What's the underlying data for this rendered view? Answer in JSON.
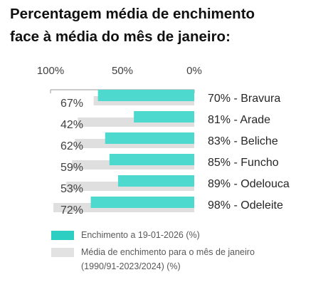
{
  "chart_data": {
    "type": "bar",
    "orientation": "horizontal",
    "title_lines": [
      "Percentagem média de enchimento",
      "face à média do mês de janeiro:"
    ],
    "x_axis": {
      "reversed": true,
      "range": [
        0,
        100
      ],
      "ticks": [
        100,
        50,
        0
      ],
      "tick_labels": [
        "100%",
        "50%",
        "0%"
      ]
    },
    "categories": [
      "70% - Bravura",
      "81% - Arade",
      "83% - Beliche",
      "85% - Funcho",
      "89% - Odelouca",
      "98% - Odeleite"
    ],
    "series": [
      {
        "name": "Enchimento a 19-01-2026 (%)",
        "color": "#4DD9CE",
        "values": [
          67,
          42,
          62,
          59,
          53,
          72
        ],
        "labels": [
          "67%",
          "42%",
          "62%",
          "59%",
          "53%",
          "72%"
        ]
      },
      {
        "name": "Média de enchimento para o mês de janeiro (1990/91-2023/2024) (%)",
        "color": "#D9D9D9",
        "values": [
          70,
          81,
          83,
          85,
          89,
          98
        ]
      }
    ],
    "legend": {
      "position": "bottom",
      "items": [
        {
          "color": "#2ECFC3",
          "lines": [
            "Enchimento a 19-01-2026 (%)"
          ]
        },
        {
          "color": "#E2E2E2",
          "lines": [
            "Média de enchimento para o mês de janeiro",
            "(1990/91-2023/2024) (%)"
          ]
        }
      ]
    },
    "gridlines": false
  }
}
